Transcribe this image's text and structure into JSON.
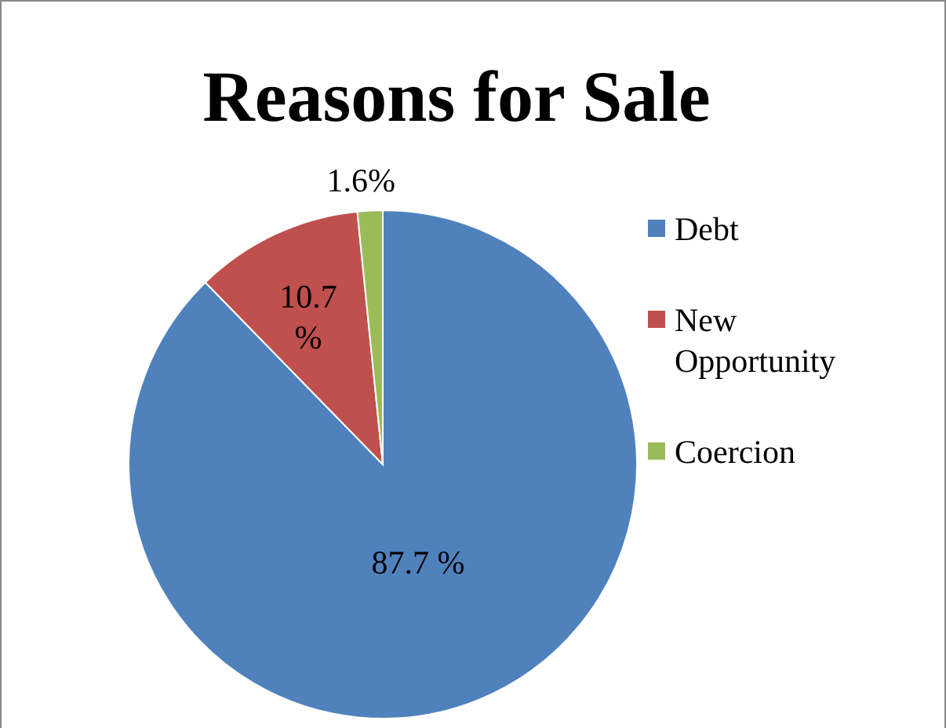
{
  "chart_data": {
    "type": "pie",
    "title": "Reasons for Sale",
    "categories": [
      "Debt",
      "New Opportunity",
      "Coercion"
    ],
    "values": [
      87.7,
      10.7,
      1.6
    ],
    "colors": [
      "#4f81bd",
      "#c0504d",
      "#9bbb59"
    ],
    "value_labels": [
      "87.7 %",
      "10.7 %",
      "1.6%"
    ],
    "legend": "right"
  }
}
